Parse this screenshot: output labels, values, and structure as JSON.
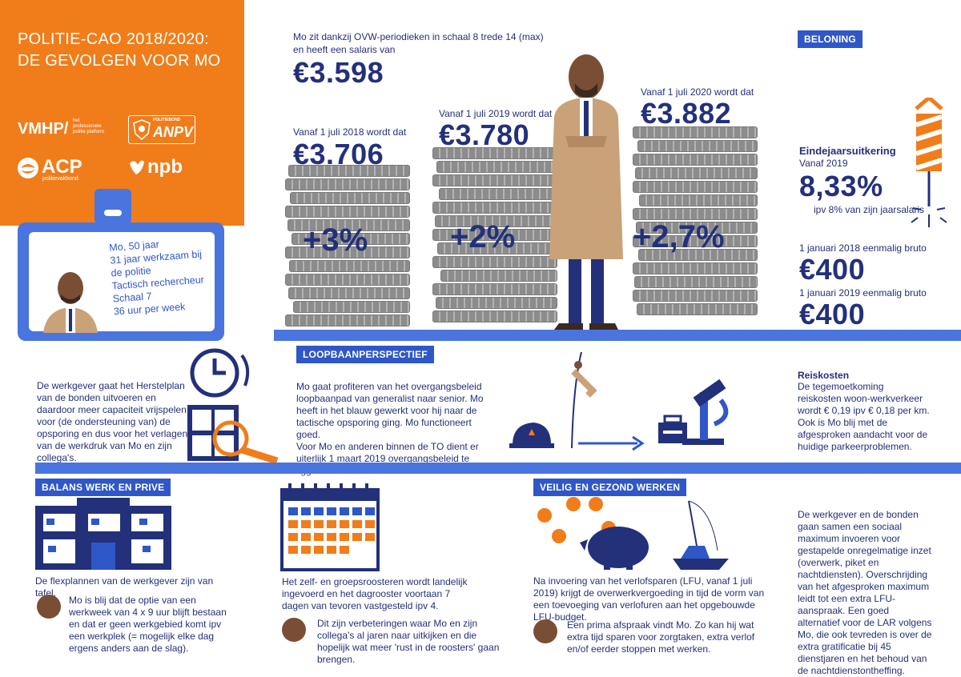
{
  "header": {
    "title_line1": "POLITIE-CAO 2018/2020:",
    "title_line2": "DE GEVOLGEN VOOR MO",
    "logos": {
      "vmhp": "VMHP/",
      "vmhp_sub1": "het",
      "vmhp_sub2": "professionele",
      "vmhp_sub3": "politie platform",
      "anpv_top": "POLITIEBOND",
      "anpv": "ANPV",
      "acp": "ACP",
      "acp_sub": "politievakbond",
      "npb": "npb"
    }
  },
  "badge": {
    "line1": "Mo, 50 jaar",
    "line2": "31 jaar werkzaam bij",
    "line3": "de politie",
    "line4": "Tactisch rechercheur",
    "line5": "Schaal 7",
    "line6": "36 uur per week"
  },
  "salary": {
    "intro_line1": "Mo zit dankzij OVW-periodieken in schaal 8 trede 14 (max)",
    "intro_line2": "en heeft een salaris van",
    "current": "€3.598",
    "step1_label": "Vanaf 1 juli 2018 wordt dat",
    "step1_value": "€3.706",
    "step1_pct": "+3%",
    "step2_label": "Vanaf 1 juli 2019 wordt dat",
    "step2_value": "€3.780",
    "step2_pct": "+2%",
    "step3_label": "Vanaf 1 juli 2020 wordt dat",
    "step3_value": "€3.882",
    "step3_pct": "+2,7%"
  },
  "beloning": {
    "tag": "BELONING",
    "eindejaar_title": "Eindejaarsuitkering",
    "eindejaar_sub": "Vanaf 2019",
    "eindejaar_pct": "8,33%",
    "eindejaar_note": "ipv 8% van zijn jaarsalaris",
    "once1_label": "1 januari 2018 eenmalig bruto",
    "once1_value": "€400",
    "once2_label": "1 januari 2019 eenmalig bruto",
    "once2_value": "€400"
  },
  "herstelplan": {
    "text": "De werkgever gaat het Herstelplan van de bonden uitvoeren en daardoor meer capaciteit vrijspelen voor (de ondersteuning van) de opsporing en dus voor het verlagen van de werkdruk van Mo en zijn collega's."
  },
  "loopbaan": {
    "tag": "LOOPBAANPERSPECTIEF",
    "text1": "Mo gaat profiteren van het overgangsbeleid loopbaanpad van generalist naar senior. Mo heeft in het blauw gewerkt voor hij naar de tactische opsporing ging. Mo functioneert goed.",
    "text2": "Voor Mo en anderen binnen de TO dient er uiterlijk 1 maart 2019 overgangsbeleid te liggen."
  },
  "reiskosten": {
    "title": "Reiskosten",
    "text": "De tegemoetkoming reiskosten woon-werkverkeer wordt € 0,19 ipv € 0,18 per km. Ook is Mo blij met de afgesproken aandacht voor de huidige parkeerproblemen."
  },
  "balans": {
    "tag": "BALANS WERK EN PRIVE",
    "text1": "De flexplannen van de werkgever zijn van tafel.",
    "text2": "Mo is blij dat de optie van een werkweek van 4 x 9 uur blijft bestaan en dat er geen werkgebied komt ipv een werkplek (= mogelijk elke dag ergens anders aan de slag)."
  },
  "roosters": {
    "text1": "Het zelf- en groepsroosteren wordt landelijk ingevoerd en het dagrooster voortaan 7 dagen van tevoren vastgesteld ipv 4.",
    "text2": "Dit zijn verbeteringen waar Mo en zijn collega's al jaren naar uitkijken en die hopelijk wat meer 'rust in de roosters' gaan brengen."
  },
  "veilig": {
    "tag": "VEILIG EN GEZOND WERKEN",
    "text1": "Na invoering van het verlofsparen (LFU, vanaf 1 juli 2019) krijgt de overwerkvergoeding in tijd de vorm van een toevoeging van verlofuren aan het opgebouwde LFU-budget.",
    "text2": "Een prima afspraak vindt Mo. Zo kan hij wat extra tijd sparen voor zorgtaken, extra verlof en/of eerder stoppen met werken."
  },
  "maximum": {
    "text": "De werkgever en de bonden gaan samen een sociaal maximum invoeren voor gestapelde onregelmatige inzet (overwerk, piket en nachtdiensten). Overschrijding van het afgesproken maximum leidt tot een extra LFU-aanspraak. Een goed alternatief voor de LAR volgens Mo, die ook tevreden is over de extra gratificatie bij 45 dienstjaren en het behoud van de nachtdienstontheffing."
  },
  "colors": {
    "orange": "#f07d1a",
    "navy": "#23307a",
    "blue": "#2f57c8",
    "band": "#4a74de"
  }
}
